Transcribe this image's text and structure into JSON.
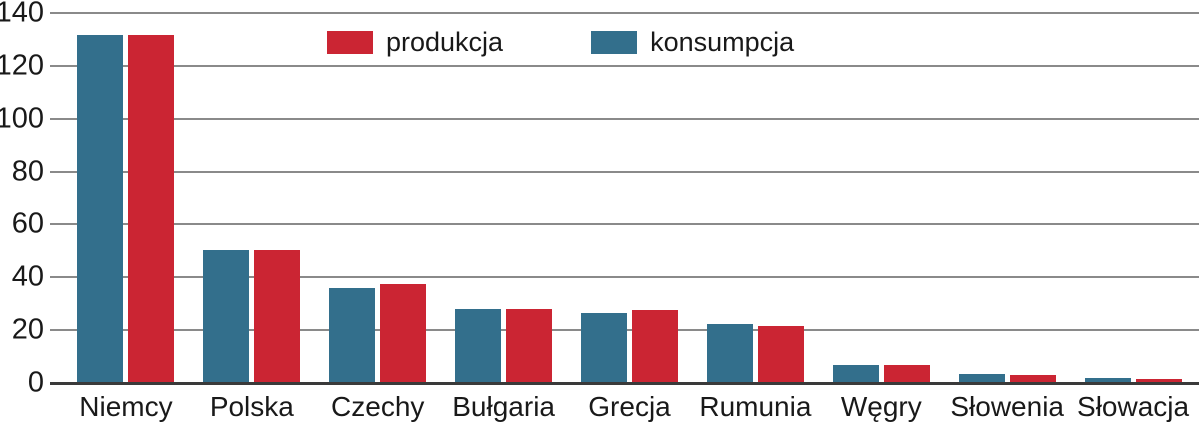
{
  "chart_data": {
    "type": "bar",
    "title": "",
    "xlabel": "",
    "ylabel": "",
    "categories": [
      "Niemcy",
      "Polska",
      "Czechy",
      "Bułgaria",
      "Grecja",
      "Rumunia",
      "Węgry",
      "Słowenia",
      "Słowacja"
    ],
    "series": [
      {
        "name": "konsumpcja",
        "color": "#336F8C",
        "values": [
          131.5,
          50.5,
          36,
          28,
          26.5,
          22.5,
          7,
          3.5,
          2
        ]
      },
      {
        "name": "produkcja",
        "color": "#CB2533",
        "values": [
          131.5,
          50.5,
          37.5,
          28,
          27.5,
          21.5,
          7,
          3.2,
          1.5
        ]
      }
    ],
    "bar_order_in_group": [
      "konsumpcja",
      "produkcja"
    ],
    "legend": [
      {
        "label": "produkcja",
        "color": "#CB2533"
      },
      {
        "label": "konsumpcja",
        "color": "#336F8C"
      }
    ],
    "legend_position": "top-center",
    "ylim": [
      0,
      140
    ],
    "yticks": [
      0,
      20,
      40,
      60,
      80,
      100,
      120,
      140
    ],
    "grid": true,
    "gridline_color": "#8a8a8a",
    "axis_line_color": "#3a3a3a",
    "text_color": "#191919",
    "background_color": "#ffffff"
  }
}
